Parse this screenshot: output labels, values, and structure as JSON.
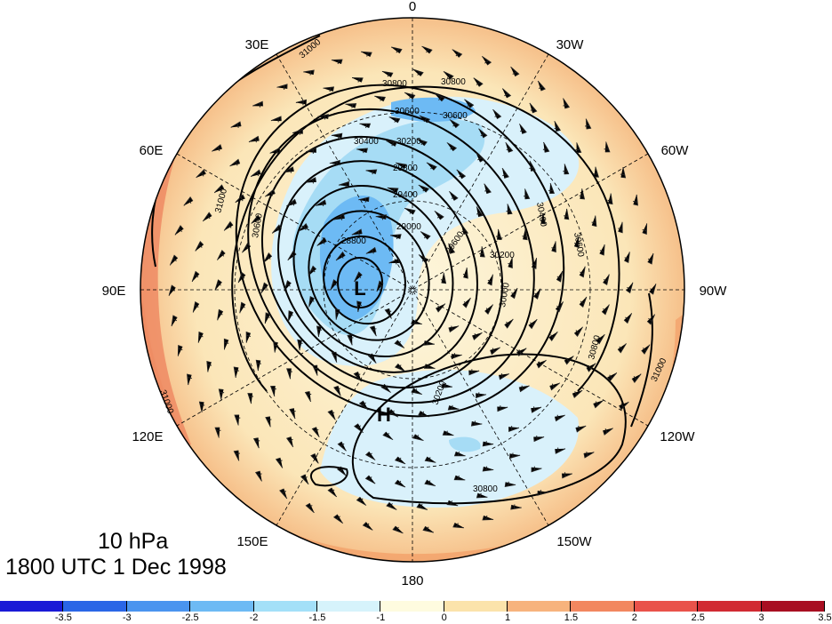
{
  "map": {
    "longitude_labels": [
      "0",
      "30W",
      "60W",
      "90W",
      "120W",
      "150W",
      "180",
      "150E",
      "120E",
      "90E",
      "60E",
      "30E"
    ],
    "pressure_systems": [
      {
        "type": "low",
        "label": "L"
      },
      {
        "type": "high",
        "label": "H"
      }
    ],
    "contour_labels": [
      "30800",
      "30800",
      "30800",
      "30800",
      "30600",
      "30600",
      "30600",
      "30600",
      "30400",
      "30400",
      "30200",
      "30200",
      "30200",
      "29800",
      "29600",
      "29400",
      "29000",
      "28800",
      "30000",
      "31000",
      "31000",
      "31000",
      "31000"
    ],
    "colors": {
      "contour": "#000000",
      "anomaly_strong_negative": "#4aa3f0",
      "anomaly_negative": "#a6dcf5",
      "anomaly_weak_negative": "#d9f1fb",
      "anomaly_weak_positive": "#fdf3d6",
      "anomaly_positive": "#f9c98c",
      "anomaly_strong_positive": "#ee8660"
    }
  },
  "title": {
    "level": "10 hPa",
    "time": "1800 UTC 1 Dec 1998"
  },
  "colorbar": {
    "colors": [
      "#1a1ad6",
      "#2a66e6",
      "#4a94ef",
      "#6dbaf4",
      "#a3e0f8",
      "#d6f3fb",
      "#fefbdf",
      "#fbe3ab",
      "#f7b37d",
      "#f2875f",
      "#e9524a",
      "#d12a32",
      "#a80e21"
    ],
    "tick_labels": [
      "-3.5",
      "-3",
      "-2.5",
      "-2",
      "-1.5",
      "-1",
      "0",
      "1",
      "1.5",
      "2",
      "2.5",
      "3",
      "3.5"
    ]
  }
}
